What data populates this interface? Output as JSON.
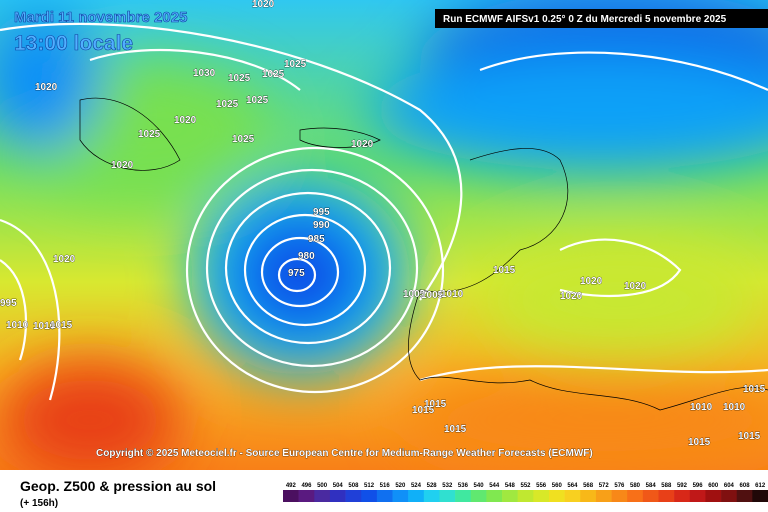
{
  "header": {
    "date": "Mardi 11 novembre 2025",
    "time": "13:00 locale",
    "run": "Run ECMWF AIFSv1 0.25° 0 Z du Mercredi 5 novembre 2025"
  },
  "copyright": "Copyright © 2025 Meteociel.fr - Source European Centre for Medium-Range Weather Forecasts (ECMWF)",
  "isobar_labels": [
    1020,
    1030,
    1025,
    1025,
    1025,
    1020,
    1025,
    1025,
    1020,
    1025,
    1025,
    1020,
    1020,
    1020,
    995,
    990,
    985,
    980,
    975,
    1015,
    1020,
    1020,
    1020,
    1005,
    1005,
    1010,
    995,
    1010,
    1010,
    1015,
    1015,
    1015,
    1010,
    1010,
    1015,
    1015,
    1015,
    1015
  ],
  "footer": {
    "title": "Geop. Z500 & pression au sol",
    "lead": "(+ 156h)"
  },
  "scale": {
    "values": [
      492,
      496,
      500,
      504,
      508,
      512,
      516,
      520,
      524,
      528,
      532,
      536,
      540,
      544,
      548,
      552,
      556,
      560,
      564,
      568,
      572,
      576,
      580,
      584,
      588,
      592,
      596,
      600,
      604,
      608,
      612
    ],
    "colors": [
      "#4b1060",
      "#5a1a80",
      "#4a2aa0",
      "#3030c0",
      "#2040d8",
      "#1050e8",
      "#1070f0",
      "#1090f8",
      "#10b0f8",
      "#20d0f0",
      "#30e0d0",
      "#40e8a0",
      "#60e870",
      "#80e850",
      "#a0e840",
      "#c0e830",
      "#d8e828",
      "#f0e020",
      "#f8d020",
      "#f8b818",
      "#f8a018",
      "#f88818",
      "#f87018",
      "#f05818",
      "#e84018",
      "#d82818",
      "#c01818",
      "#a01010",
      "#801010",
      "#501010",
      "#200808"
    ]
  }
}
